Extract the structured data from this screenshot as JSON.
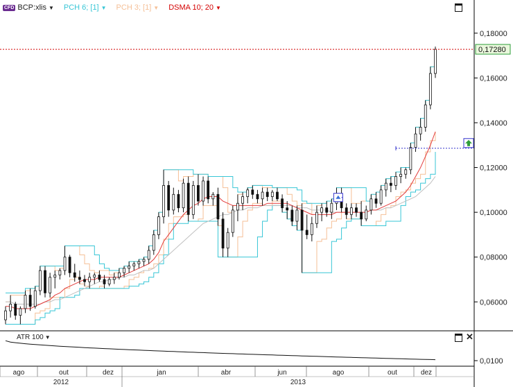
{
  "legend": {
    "symbol": "BCP:xlis",
    "badge": "CFD",
    "pch6": "PCH 6; [1]",
    "pch3": "PCH 3; [1]",
    "dsma": "DSMA 10; 20"
  },
  "colors": {
    "pch6": "#37c6d6",
    "pch3": "#f5bf96",
    "dsma_fast": "#e33b3b",
    "dsma_slow": "#c0c0c0",
    "candle": "#111111",
    "last_price_line": "#d40000",
    "marker_line": "#3333cc",
    "buy_marker": "#2e9e3a"
  },
  "atr": {
    "label": "ATR 100"
  },
  "chart_data": {
    "type": "candlestick",
    "y_axis": {
      "ylim": [
        0.048,
        0.188
      ],
      "ticks": [
        "0,06000",
        "0,08000",
        "0,10000",
        "0,12000",
        "0,14000",
        "0,16000",
        "0,18000"
      ],
      "tick_values": [
        0.06,
        0.08,
        0.1,
        0.12,
        0.14,
        0.16,
        0.18
      ]
    },
    "last_price": {
      "label": "0,17280",
      "value": 0.1728
    },
    "x_axis": {
      "months": [
        "ago",
        "out",
        "dez",
        "jan",
        "abr",
        "jun",
        "ago",
        "out",
        "dez"
      ],
      "years": [
        "2012",
        "2013"
      ]
    },
    "candles": [
      [
        0.052,
        0.058,
        0.05,
        0.056
      ],
      [
        0.056,
        0.063,
        0.053,
        0.059
      ],
      [
        0.059,
        0.06,
        0.052,
        0.054
      ],
      [
        0.054,
        0.058,
        0.05,
        0.057
      ],
      [
        0.057,
        0.065,
        0.055,
        0.063
      ],
      [
        0.063,
        0.066,
        0.056,
        0.058
      ],
      [
        0.058,
        0.067,
        0.057,
        0.065
      ],
      [
        0.065,
        0.076,
        0.063,
        0.074
      ],
      [
        0.074,
        0.076,
        0.062,
        0.064
      ],
      [
        0.064,
        0.073,
        0.062,
        0.071
      ],
      [
        0.071,
        0.074,
        0.066,
        0.072
      ],
      [
        0.072,
        0.075,
        0.07,
        0.074
      ],
      [
        0.074,
        0.085,
        0.072,
        0.08
      ],
      [
        0.08,
        0.081,
        0.071,
        0.073
      ],
      [
        0.073,
        0.077,
        0.069,
        0.071
      ],
      [
        0.071,
        0.074,
        0.068,
        0.07
      ],
      [
        0.07,
        0.072,
        0.067,
        0.069
      ],
      [
        0.069,
        0.073,
        0.066,
        0.071
      ],
      [
        0.071,
        0.073,
        0.068,
        0.072
      ],
      [
        0.072,
        0.074,
        0.069,
        0.07
      ],
      [
        0.07,
        0.072,
        0.066,
        0.068
      ],
      [
        0.068,
        0.071,
        0.067,
        0.07
      ],
      [
        0.07,
        0.073,
        0.068,
        0.071
      ],
      [
        0.071,
        0.075,
        0.07,
        0.073
      ],
      [
        0.073,
        0.076,
        0.071,
        0.075
      ],
      [
        0.075,
        0.078,
        0.073,
        0.076
      ],
      [
        0.076,
        0.078,
        0.074,
        0.077
      ],
      [
        0.077,
        0.079,
        0.075,
        0.078
      ],
      [
        0.078,
        0.08,
        0.076,
        0.079
      ],
      [
        0.079,
        0.085,
        0.077,
        0.083
      ],
      [
        0.083,
        0.092,
        0.081,
        0.09
      ],
      [
        0.09,
        0.1,
        0.088,
        0.098
      ],
      [
        0.098,
        0.119,
        0.095,
        0.112
      ],
      [
        0.112,
        0.114,
        0.098,
        0.101
      ],
      [
        0.101,
        0.111,
        0.099,
        0.108
      ],
      [
        0.108,
        0.11,
        0.1,
        0.102
      ],
      [
        0.102,
        0.115,
        0.1,
        0.113
      ],
      [
        0.113,
        0.116,
        0.096,
        0.099
      ],
      [
        0.099,
        0.114,
        0.097,
        0.112
      ],
      [
        0.112,
        0.117,
        0.103,
        0.105
      ],
      [
        0.105,
        0.116,
        0.103,
        0.114
      ],
      [
        0.114,
        0.116,
        0.104,
        0.106
      ],
      [
        0.106,
        0.109,
        0.103,
        0.108
      ],
      [
        0.108,
        0.111,
        0.094,
        0.097
      ],
      [
        0.097,
        0.1,
        0.08,
        0.084
      ],
      [
        0.084,
        0.093,
        0.08,
        0.091
      ],
      [
        0.091,
        0.103,
        0.089,
        0.101
      ],
      [
        0.101,
        0.108,
        0.096,
        0.104
      ],
      [
        0.104,
        0.109,
        0.101,
        0.107
      ],
      [
        0.107,
        0.111,
        0.104,
        0.11
      ],
      [
        0.11,
        0.112,
        0.106,
        0.108
      ],
      [
        0.108,
        0.11,
        0.104,
        0.106
      ],
      [
        0.106,
        0.111,
        0.103,
        0.109
      ],
      [
        0.109,
        0.111,
        0.105,
        0.107
      ],
      [
        0.107,
        0.11,
        0.105,
        0.109
      ],
      [
        0.109,
        0.111,
        0.105,
        0.106
      ],
      [
        0.106,
        0.108,
        0.1,
        0.102
      ],
      [
        0.102,
        0.105,
        0.097,
        0.101
      ],
      [
        0.101,
        0.103,
        0.094,
        0.096
      ],
      [
        0.096,
        0.103,
        0.092,
        0.101
      ],
      [
        0.101,
        0.104,
        0.073,
        0.092
      ],
      [
        0.092,
        0.099,
        0.088,
        0.09
      ],
      [
        0.09,
        0.098,
        0.087,
        0.095
      ],
      [
        0.095,
        0.103,
        0.093,
        0.1
      ],
      [
        0.1,
        0.104,
        0.096,
        0.102
      ],
      [
        0.102,
        0.105,
        0.098,
        0.1
      ],
      [
        0.1,
        0.106,
        0.097,
        0.104
      ],
      [
        0.104,
        0.111,
        0.101,
        0.108
      ],
      [
        0.108,
        0.111,
        0.1,
        0.102
      ],
      [
        0.102,
        0.104,
        0.097,
        0.099
      ],
      [
        0.099,
        0.104,
        0.097,
        0.102
      ],
      [
        0.102,
        0.104,
        0.098,
        0.1
      ],
      [
        0.1,
        0.105,
        0.094,
        0.097
      ],
      [
        0.097,
        0.103,
        0.096,
        0.101
      ],
      [
        0.101,
        0.108,
        0.099,
        0.106
      ],
      [
        0.106,
        0.109,
        0.102,
        0.104
      ],
      [
        0.104,
        0.112,
        0.103,
        0.11
      ],
      [
        0.11,
        0.115,
        0.107,
        0.113
      ],
      [
        0.113,
        0.116,
        0.109,
        0.112
      ],
      [
        0.112,
        0.118,
        0.11,
        0.116
      ],
      [
        0.116,
        0.12,
        0.113,
        0.117
      ],
      [
        0.117,
        0.12,
        0.115,
        0.119
      ],
      [
        0.119,
        0.131,
        0.117,
        0.129
      ],
      [
        0.129,
        0.138,
        0.127,
        0.135
      ],
      [
        0.135,
        0.142,
        0.132,
        0.138
      ],
      [
        0.138,
        0.15,
        0.136,
        0.148
      ],
      [
        0.148,
        0.165,
        0.146,
        0.162
      ],
      [
        0.162,
        0.174,
        0.16,
        0.1728
      ]
    ],
    "pch6_upper": [
      0.064,
      0.064,
      0.064,
      0.064,
      0.066,
      0.066,
      0.067,
      0.076,
      0.076,
      0.076,
      0.076,
      0.076,
      0.085,
      0.085,
      0.085,
      0.085,
      0.085,
      0.085,
      0.081,
      0.077,
      0.075,
      0.074,
      0.074,
      0.075,
      0.076,
      0.078,
      0.078,
      0.079,
      0.08,
      0.085,
      0.092,
      0.1,
      0.119,
      0.119,
      0.119,
      0.119,
      0.119,
      0.119,
      0.117,
      0.117,
      0.117,
      0.116,
      0.116,
      0.116,
      0.116,
      0.116,
      0.111,
      0.109,
      0.109,
      0.111,
      0.112,
      0.112,
      0.112,
      0.112,
      0.111,
      0.111,
      0.111,
      0.111,
      0.111,
      0.11,
      0.105,
      0.104,
      0.104,
      0.104,
      0.104,
      0.105,
      0.106,
      0.111,
      0.111,
      0.111,
      0.111,
      0.111,
      0.111,
      0.105,
      0.108,
      0.109,
      0.112,
      0.115,
      0.116,
      0.118,
      0.12,
      0.12,
      0.131,
      0.138,
      0.142,
      0.15,
      0.165,
      0.174
    ],
    "pch6_lower": [
      0.05,
      0.05,
      0.05,
      0.05,
      0.05,
      0.05,
      0.052,
      0.053,
      0.055,
      0.056,
      0.057,
      0.062,
      0.062,
      0.062,
      0.063,
      0.066,
      0.066,
      0.066,
      0.066,
      0.066,
      0.066,
      0.066,
      0.066,
      0.066,
      0.066,
      0.067,
      0.067,
      0.068,
      0.069,
      0.071,
      0.073,
      0.077,
      0.081,
      0.088,
      0.095,
      0.095,
      0.095,
      0.096,
      0.096,
      0.096,
      0.096,
      0.096,
      0.096,
      0.08,
      0.08,
      0.08,
      0.08,
      0.08,
      0.08,
      0.08,
      0.08,
      0.089,
      0.096,
      0.101,
      0.103,
      0.103,
      0.1,
      0.097,
      0.094,
      0.092,
      0.073,
      0.073,
      0.073,
      0.073,
      0.073,
      0.073,
      0.087,
      0.088,
      0.093,
      0.096,
      0.097,
      0.097,
      0.094,
      0.094,
      0.094,
      0.094,
      0.094,
      0.096,
      0.096,
      0.096,
      0.103,
      0.107,
      0.109,
      0.11,
      0.113,
      0.115,
      0.117,
      0.127
    ],
    "pch3_upper": [
      0.06,
      0.063,
      0.063,
      0.063,
      0.065,
      0.066,
      0.067,
      0.076,
      0.076,
      0.076,
      0.074,
      0.075,
      0.085,
      0.085,
      0.085,
      0.081,
      0.077,
      0.074,
      0.073,
      0.074,
      0.074,
      0.072,
      0.073,
      0.075,
      0.076,
      0.078,
      0.078,
      0.079,
      0.08,
      0.085,
      0.092,
      0.1,
      0.119,
      0.119,
      0.119,
      0.114,
      0.116,
      0.116,
      0.117,
      0.117,
      0.117,
      0.116,
      0.116,
      0.116,
      0.111,
      0.1,
      0.103,
      0.108,
      0.109,
      0.111,
      0.112,
      0.112,
      0.111,
      0.111,
      0.111,
      0.111,
      0.111,
      0.108,
      0.105,
      0.103,
      0.104,
      0.104,
      0.099,
      0.103,
      0.104,
      0.105,
      0.106,
      0.111,
      0.111,
      0.111,
      0.104,
      0.104,
      0.105,
      0.105,
      0.108,
      0.109,
      0.112,
      0.115,
      0.116,
      0.118,
      0.12,
      0.12,
      0.131,
      0.138,
      0.142,
      0.15,
      0.165,
      0.174
    ],
    "pch3_lower": [
      0.05,
      0.05,
      0.05,
      0.05,
      0.05,
      0.05,
      0.055,
      0.056,
      0.057,
      0.062,
      0.062,
      0.062,
      0.066,
      0.07,
      0.071,
      0.068,
      0.067,
      0.066,
      0.066,
      0.067,
      0.066,
      0.066,
      0.066,
      0.066,
      0.067,
      0.07,
      0.071,
      0.073,
      0.074,
      0.075,
      0.077,
      0.081,
      0.088,
      0.095,
      0.098,
      0.098,
      0.099,
      0.096,
      0.096,
      0.097,
      0.103,
      0.103,
      0.103,
      0.094,
      0.08,
      0.08,
      0.08,
      0.089,
      0.096,
      0.101,
      0.104,
      0.104,
      0.103,
      0.103,
      0.105,
      0.105,
      0.1,
      0.097,
      0.094,
      0.092,
      0.073,
      0.073,
      0.073,
      0.087,
      0.088,
      0.093,
      0.096,
      0.097,
      0.1,
      0.097,
      0.097,
      0.097,
      0.094,
      0.094,
      0.094,
      0.096,
      0.099,
      0.102,
      0.103,
      0.107,
      0.109,
      0.11,
      0.113,
      0.115,
      0.117,
      0.127,
      0.132,
      0.136
    ],
    "dsma_fast": [
      0.058,
      0.058,
      0.057,
      0.057,
      0.057,
      0.057,
      0.058,
      0.059,
      0.06,
      0.061,
      0.063,
      0.064,
      0.066,
      0.067,
      0.068,
      0.069,
      0.07,
      0.07,
      0.07,
      0.071,
      0.071,
      0.071,
      0.071,
      0.071,
      0.072,
      0.073,
      0.074,
      0.075,
      0.076,
      0.077,
      0.079,
      0.082,
      0.087,
      0.09,
      0.093,
      0.096,
      0.099,
      0.101,
      0.103,
      0.104,
      0.106,
      0.107,
      0.107,
      0.107,
      0.105,
      0.104,
      0.103,
      0.103,
      0.103,
      0.103,
      0.103,
      0.103,
      0.103,
      0.104,
      0.104,
      0.104,
      0.104,
      0.104,
      0.103,
      0.102,
      0.101,
      0.1,
      0.099,
      0.099,
      0.099,
      0.099,
      0.099,
      0.1,
      0.1,
      0.1,
      0.1,
      0.1,
      0.1,
      0.1,
      0.101,
      0.101,
      0.102,
      0.103,
      0.104,
      0.105,
      0.107,
      0.109,
      0.112,
      0.116,
      0.12,
      0.125,
      0.13,
      0.136
    ],
    "dsma_slow": [
      0.06,
      0.06,
      0.059,
      0.059,
      0.059,
      0.059,
      0.059,
      0.059,
      0.06,
      0.06,
      0.061,
      0.061,
      0.062,
      0.063,
      0.064,
      0.065,
      0.066,
      0.067,
      0.068,
      0.069,
      0.069,
      0.07,
      0.07,
      0.071,
      0.071,
      0.072,
      0.072,
      0.073,
      0.074,
      0.074,
      0.075,
      0.077,
      0.079,
      0.081,
      0.083,
      0.085,
      0.087,
      0.089,
      0.091,
      0.093,
      0.095,
      0.096,
      0.097,
      0.098,
      0.099,
      0.099,
      0.1,
      0.101,
      0.101,
      0.102,
      0.102,
      0.102,
      0.103,
      0.103,
      0.103,
      0.103,
      0.103,
      0.103,
      0.103,
      0.102,
      0.102,
      0.102,
      0.101,
      0.101,
      0.101,
      0.101,
      0.1,
      0.1,
      0.1,
      0.1,
      0.1,
      0.1,
      0.1,
      0.1,
      0.101,
      0.101,
      0.101,
      0.102,
      0.102,
      0.103,
      0.104,
      0.105,
      0.106,
      0.107,
      0.109,
      0.111,
      0.113,
      0.116
    ],
    "stop_level": {
      "value": 0.1286,
      "from_index": 79
    },
    "sell_marker_index": 66,
    "buy_marker_index": 87
  }
}
